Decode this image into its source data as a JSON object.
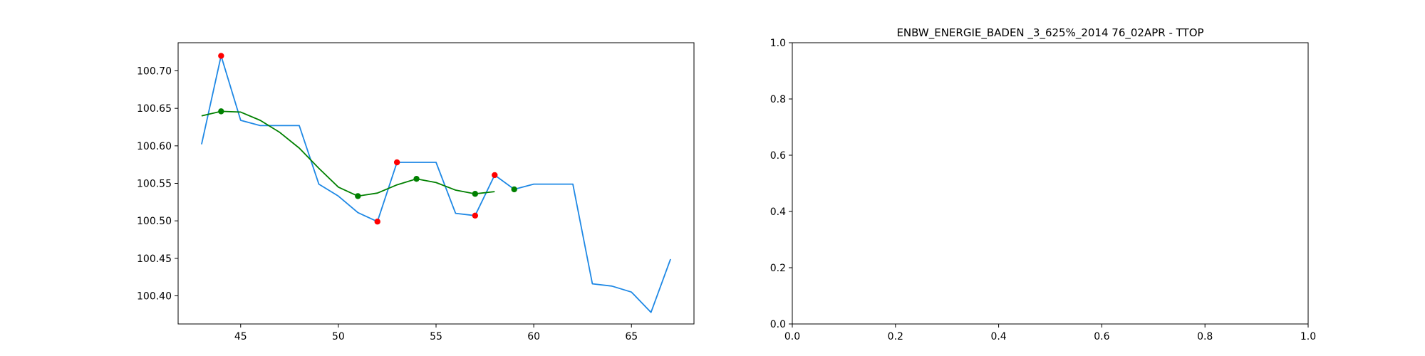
{
  "chart_data": [
    {
      "type": "line",
      "title": "",
      "xlabel": "",
      "ylabel": "",
      "xlim": [
        41.8,
        68.2
      ],
      "ylim": [
        100.3625,
        100.7375
      ],
      "xticks": [
        45,
        50,
        55,
        60,
        65
      ],
      "xtick_labels": [
        "45",
        "50",
        "55",
        "60",
        "65"
      ],
      "yticks": [
        100.4,
        100.45,
        100.5,
        100.55,
        100.6,
        100.65,
        100.7
      ],
      "ytick_labels": [
        "100.40",
        "100.45",
        "100.50",
        "100.55",
        "100.60",
        "100.65",
        "100.70"
      ],
      "grid": false,
      "series": [
        {
          "role": "price",
          "style": "line",
          "color": "#1e88e5",
          "points": [
            [
              43,
              100.602
            ],
            [
              44,
              100.72
            ],
            [
              45,
              100.634
            ],
            [
              46,
              100.627
            ],
            [
              47,
              100.627
            ],
            [
              48,
              100.627
            ],
            [
              49,
              100.549
            ],
            [
              50,
              100.533
            ],
            [
              51,
              100.511
            ],
            [
              52,
              100.499
            ],
            [
              53,
              100.578
            ],
            [
              54,
              100.578
            ],
            [
              55,
              100.578
            ],
            [
              56,
              100.51
            ],
            [
              57,
              100.507
            ],
            [
              58,
              100.561
            ],
            [
              59,
              100.542
            ],
            [
              60,
              100.549
            ],
            [
              61,
              100.549
            ],
            [
              62,
              100.549
            ],
            [
              63,
              100.416
            ],
            [
              64,
              100.413
            ],
            [
              65,
              100.405
            ],
            [
              66,
              100.378
            ],
            [
              67,
              100.449
            ]
          ]
        },
        {
          "role": "smoothed",
          "style": "line",
          "color": "#008000",
          "points": [
            [
              43,
              100.64
            ],
            [
              44,
              100.646
            ],
            [
              45,
              100.645
            ],
            [
              46,
              100.634
            ],
            [
              47,
              100.618
            ],
            [
              48,
              100.597
            ],
            [
              49,
              100.57
            ],
            [
              50,
              100.545
            ],
            [
              51,
              100.533
            ],
            [
              52,
              100.537
            ],
            [
              53,
              100.548
            ],
            [
              54,
              100.556
            ],
            [
              55,
              100.551
            ],
            [
              56,
              100.541
            ],
            [
              57,
              100.536
            ],
            [
              58,
              100.539
            ]
          ]
        },
        {
          "role": "extrema",
          "style": "scatter",
          "color": "#ff0000",
          "points": [
            [
              44,
              100.72
            ],
            [
              52,
              100.499
            ],
            [
              53,
              100.578
            ],
            [
              57,
              100.507
            ],
            [
              58,
              100.561
            ]
          ]
        },
        {
          "role": "smoothed-extrema",
          "style": "scatter",
          "color": "#008000",
          "points": [
            [
              44,
              100.646
            ],
            [
              51,
              100.533
            ],
            [
              54,
              100.556
            ],
            [
              57,
              100.536
            ],
            [
              59,
              100.542
            ]
          ]
        }
      ]
    },
    {
      "type": "line",
      "title": "ENBW_ENERGIE_BADEN _3_625%_2014 76_02APR - TTOP",
      "xlabel": "",
      "ylabel": "",
      "xlim": [
        0,
        1
      ],
      "ylim": [
        0,
        1
      ],
      "xticks": [
        0,
        0.2,
        0.4,
        0.6,
        0.8,
        1.0
      ],
      "xtick_labels": [
        "0.0",
        "0.2",
        "0.4",
        "0.6",
        "0.8",
        "1.0"
      ],
      "yticks": [
        0,
        0.2,
        0.4,
        0.6,
        0.8,
        1.0
      ],
      "ytick_labels": [
        "0.0",
        "0.2",
        "0.4",
        "0.6",
        "0.8",
        "1.0"
      ],
      "grid": false,
      "series": []
    }
  ]
}
